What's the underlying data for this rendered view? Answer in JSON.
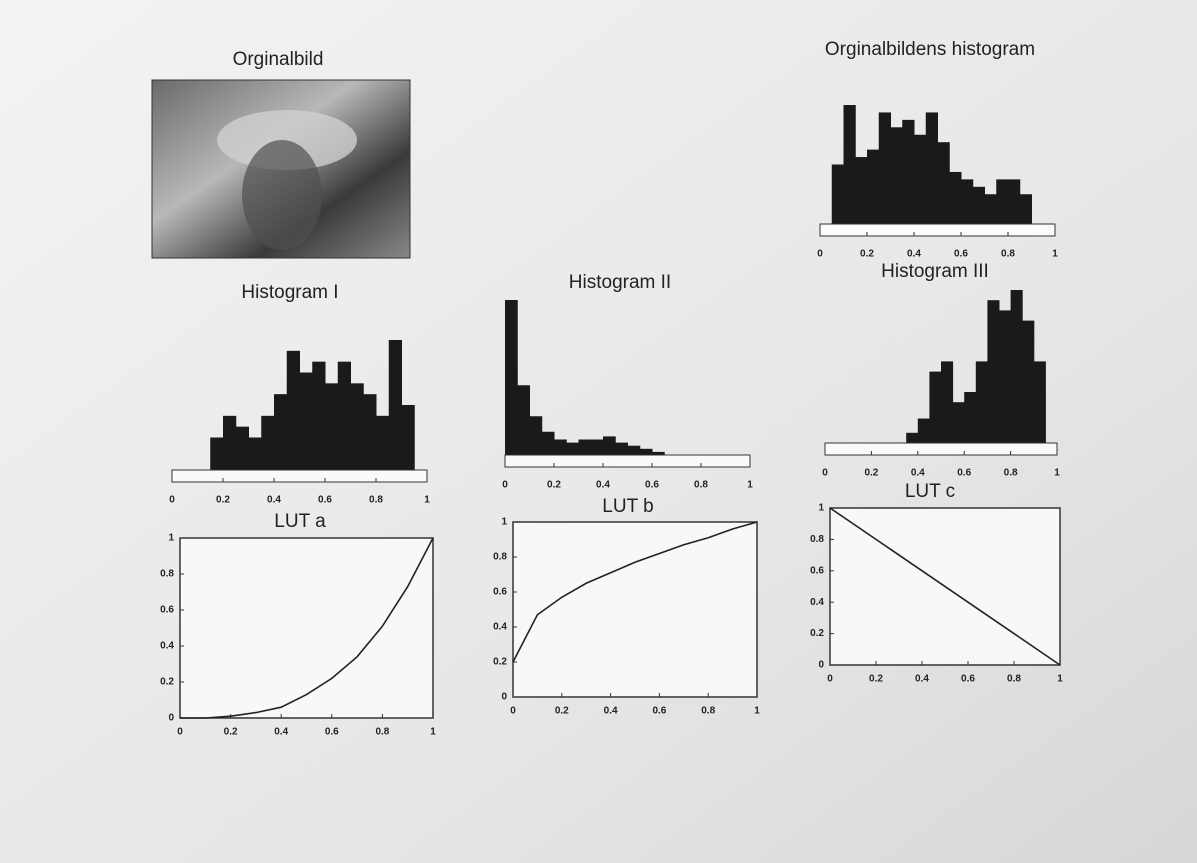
{
  "chart_data": [
    {
      "type": "image",
      "title": "Orginalbild"
    },
    {
      "type": "histogram",
      "title": "Orginalbildens histogram",
      "color": "#1a1a1a",
      "bins": [
        0,
        0.05,
        0.1,
        0.15,
        0.2,
        0.25,
        0.3,
        0.35,
        0.4,
        0.45,
        0.5,
        0.55,
        0.6,
        0.65,
        0.7,
        0.75,
        0.8,
        0.85,
        0.9,
        0.95,
        1
      ],
      "counts": [
        0,
        40,
        80,
        45,
        50,
        75,
        65,
        70,
        60,
        75,
        55,
        35,
        30,
        25,
        20,
        30,
        30,
        20,
        0,
        0
      ],
      "xlim": [
        0,
        1
      ],
      "xticks": [
        0,
        0.2,
        0.4,
        0.6,
        0.8,
        1
      ]
    },
    {
      "type": "histogram",
      "title": "Histogram I",
      "color": "#1a1a1a",
      "bins": [
        0,
        0.05,
        0.1,
        0.15,
        0.2,
        0.25,
        0.3,
        0.35,
        0.4,
        0.45,
        0.5,
        0.55,
        0.6,
        0.65,
        0.7,
        0.75,
        0.8,
        0.85,
        0.9,
        0.95,
        1
      ],
      "counts": [
        0,
        0,
        0,
        15,
        25,
        20,
        15,
        25,
        35,
        55,
        45,
        50,
        40,
        50,
        40,
        35,
        25,
        60,
        30,
        0
      ],
      "xlim": [
        0,
        1
      ],
      "xticks": [
        0,
        0.2,
        0.4,
        0.6,
        0.8,
        1
      ]
    },
    {
      "type": "histogram",
      "title": "Histogram II",
      "color": "#1a1a1a",
      "bins": [
        0,
        0.05,
        0.1,
        0.15,
        0.2,
        0.25,
        0.3,
        0.35,
        0.4,
        0.45,
        0.5,
        0.55,
        0.6,
        0.65,
        0.7,
        0.75,
        0.8,
        0.85,
        0.9,
        0.95,
        1
      ],
      "counts": [
        100,
        45,
        25,
        15,
        10,
        8,
        10,
        10,
        12,
        8,
        6,
        4,
        2,
        0,
        0,
        0,
        0,
        0,
        0,
        0
      ],
      "xlim": [
        0,
        1
      ],
      "xticks": [
        0,
        0.2,
        0.4,
        0.6,
        0.8,
        1
      ]
    },
    {
      "type": "histogram",
      "title": "Histogram III",
      "color": "#1a1a1a",
      "bins": [
        0,
        0.05,
        0.1,
        0.15,
        0.2,
        0.25,
        0.3,
        0.35,
        0.4,
        0.45,
        0.5,
        0.55,
        0.6,
        0.65,
        0.7,
        0.75,
        0.8,
        0.85,
        0.9,
        0.95,
        1
      ],
      "counts": [
        0,
        0,
        0,
        0,
        0,
        0,
        0,
        5,
        12,
        35,
        40,
        20,
        25,
        40,
        70,
        65,
        75,
        60,
        40,
        0
      ],
      "xlim": [
        0,
        1
      ],
      "xticks": [
        0,
        0.2,
        0.4,
        0.6,
        0.8,
        1
      ]
    },
    {
      "type": "line",
      "title": "LUT a",
      "color": "#222222",
      "x": [
        0,
        0.1,
        0.2,
        0.3,
        0.4,
        0.5,
        0.6,
        0.7,
        0.8,
        0.9,
        1
      ],
      "values": [
        0,
        0,
        0.01,
        0.03,
        0.06,
        0.13,
        0.22,
        0.34,
        0.51,
        0.73,
        1
      ],
      "xlim": [
        0,
        1
      ],
      "ylim": [
        0,
        1
      ],
      "xticks": [
        0,
        0.2,
        0.4,
        0.6,
        0.8,
        1
      ],
      "yticks": [
        0,
        0.2,
        0.4,
        0.6,
        0.8,
        1
      ]
    },
    {
      "type": "line",
      "title": "LUT b",
      "color": "#222222",
      "x": [
        0,
        0.1,
        0.2,
        0.3,
        0.4,
        0.5,
        0.6,
        0.7,
        0.8,
        0.9,
        1
      ],
      "values": [
        0.2,
        0.47,
        0.57,
        0.65,
        0.71,
        0.77,
        0.82,
        0.87,
        0.91,
        0.96,
        1
      ],
      "xlim": [
        0,
        1
      ],
      "ylim": [
        0,
        1
      ],
      "xticks": [
        0,
        0.2,
        0.4,
        0.6,
        0.8,
        1
      ],
      "yticks": [
        0,
        0.2,
        0.4,
        0.6,
        0.8,
        1
      ]
    },
    {
      "type": "line",
      "title": "LUT c",
      "color": "#222222",
      "x": [
        0,
        1
      ],
      "values": [
        1,
        0
      ],
      "xlim": [
        0,
        1
      ],
      "ylim": [
        0,
        1
      ],
      "xticks": [
        0,
        0.2,
        0.4,
        0.6,
        0.8,
        1
      ],
      "yticks": [
        0,
        0.2,
        0.4,
        0.6,
        0.8,
        1
      ]
    }
  ]
}
